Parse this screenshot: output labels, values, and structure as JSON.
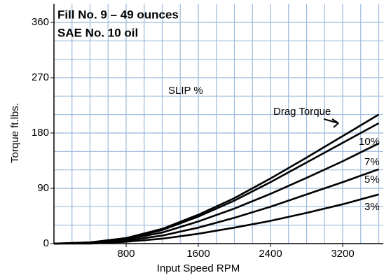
{
  "chart_data": {
    "type": "line",
    "title": "Fill No. 9 – 49 ounces",
    "subtitle": "SAE No. 10 oil",
    "annotation": "SLIP %",
    "x_label": "Input Speed RPM",
    "y_label": "Torque  ft.lbs.",
    "x": [
      0,
      400,
      800,
      1200,
      1600,
      2000,
      2400,
      2800,
      3200,
      3600
    ],
    "series": [
      {
        "name": "Drag Torque",
        "color": "#000000",
        "values": [
          0,
          2,
          9,
          24,
          47,
          74,
          106,
          140,
          175,
          210
        ]
      },
      {
        "name": "10%",
        "color": "#000000",
        "values": [
          0,
          2,
          8,
          22,
          44,
          70,
          100,
          132,
          164,
          196
        ]
      },
      {
        "name": "7%",
        "color": "#000000",
        "values": [
          0,
          1,
          7,
          18,
          36,
          57,
          81,
          107,
          134,
          163
        ]
      },
      {
        "name": "5%",
        "color": "#000000",
        "values": [
          0,
          1,
          5,
          13,
          26,
          42,
          60,
          80,
          100,
          121
        ]
      },
      {
        "name": "3%",
        "color": "#000000",
        "values": [
          0,
          0,
          3,
          8,
          16,
          26,
          37,
          50,
          64,
          80
        ]
      }
    ],
    "xlim": [
      0,
      3650
    ],
    "ylim": [
      0,
      390
    ],
    "xticks": [
      800,
      1600,
      2400,
      3200
    ],
    "yticks": [
      0,
      90,
      180,
      270,
      360
    ],
    "xgrid": [
      200,
      400,
      600,
      800,
      1000,
      1200,
      1400,
      1600,
      1800,
      2000,
      2200,
      2400,
      2600,
      2800,
      3000,
      3200,
      3400,
      3600
    ],
    "ygrid": [
      30,
      60,
      90,
      120,
      150,
      180,
      210,
      240,
      270,
      300,
      330,
      360
    ],
    "grid_color": "#9bb9dc"
  }
}
